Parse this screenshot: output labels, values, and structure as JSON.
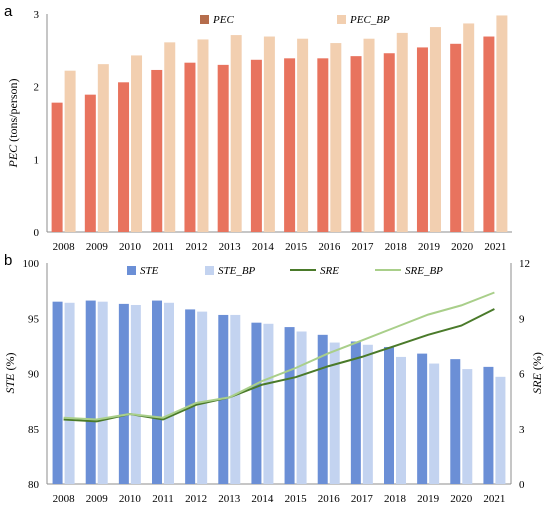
{
  "chart_data": [
    {
      "panel_label": "a",
      "type": "bar",
      "categories": [
        "2008",
        "2009",
        "2010",
        "2011",
        "2012",
        "2013",
        "2014",
        "2015",
        "2016",
        "2017",
        "2018",
        "2019",
        "2020",
        "2021"
      ],
      "series": [
        {
          "name": "PEC",
          "color": "#e8735e",
          "values": [
            1.78,
            1.89,
            2.06,
            2.23,
            2.33,
            2.3,
            2.37,
            2.39,
            2.39,
            2.42,
            2.46,
            2.54,
            2.59,
            2.69
          ]
        },
        {
          "name": "PEC_BP",
          "color": "#f2cfb0",
          "values": [
            2.22,
            2.31,
            2.43,
            2.61,
            2.65,
            2.71,
            2.69,
            2.66,
            2.6,
            2.66,
            2.74,
            2.82,
            2.87,
            2.98
          ]
        }
      ],
      "ylabel_italic": "PEC",
      "ylabel_rest": " (tons/person)",
      "ylim": [
        0,
        3
      ],
      "yticks": [
        "0",
        "1",
        "2",
        "3"
      ],
      "legend": "top"
    },
    {
      "panel_label": "b",
      "type": "bar",
      "categories": [
        "2008",
        "2009",
        "2010",
        "2011",
        "2012",
        "2013",
        "2014",
        "2015",
        "2016",
        "2017",
        "2018",
        "2019",
        "2020",
        "2021"
      ],
      "series": [
        {
          "name": "STE",
          "chart": "bar",
          "axis": "left",
          "color": "#6b8fd6",
          "values": [
            96.5,
            96.6,
            96.3,
            96.6,
            95.8,
            95.3,
            94.6,
            94.2,
            93.5,
            92.9,
            92.4,
            91.8,
            91.3,
            90.6
          ]
        },
        {
          "name": "STE_BP",
          "chart": "bar",
          "axis": "left",
          "color": "#c3d3f0",
          "values": [
            96.4,
            96.5,
            96.2,
            96.4,
            95.6,
            95.3,
            94.5,
            93.8,
            92.8,
            92.6,
            91.5,
            90.9,
            90.4,
            89.7
          ]
        },
        {
          "name": "SRE",
          "chart": "line",
          "axis": "right",
          "color": "#4a7a2a",
          "values": [
            3.5,
            3.4,
            3.8,
            3.5,
            4.3,
            4.7,
            5.4,
            5.8,
            6.4,
            6.9,
            7.5,
            8.1,
            8.6,
            9.5
          ]
        },
        {
          "name": "SRE_BP",
          "chart": "line",
          "axis": "right",
          "color": "#a9cf8a",
          "values": [
            3.6,
            3.5,
            3.8,
            3.6,
            4.4,
            4.7,
            5.6,
            6.3,
            7.1,
            7.8,
            8.5,
            9.2,
            9.7,
            10.4
          ]
        }
      ],
      "ylabel_left_italic": "STE",
      "ylabel_left_rest": " (%)",
      "ylabel_right_italic": "SRE",
      "ylabel_right_rest": " (%)",
      "ylim_left": [
        80,
        100
      ],
      "yticks_left": [
        "80",
        "85",
        "90",
        "95",
        "100"
      ],
      "ylim_right": [
        0,
        12
      ],
      "yticks_right": [
        "0",
        "3",
        "6",
        "9",
        "12"
      ],
      "legend": "top"
    }
  ]
}
